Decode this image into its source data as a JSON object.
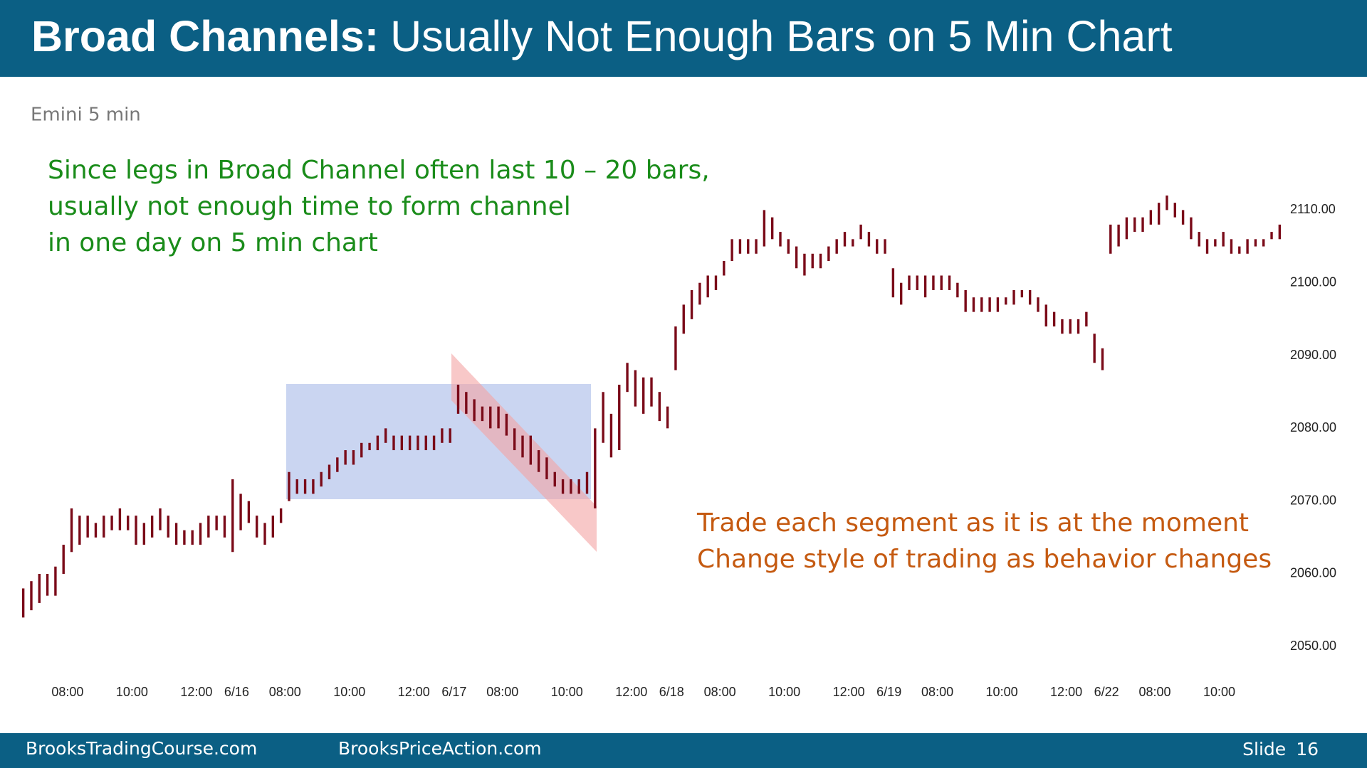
{
  "header": {
    "title_bold": "Broad Channels:",
    "title_rest": "Usually Not Enough Bars on 5 Min Chart"
  },
  "chart_data": {
    "type": "ohlc",
    "title": "Emini 5 min",
    "annotations": [
      "Since legs in Broad Channel often last 10 – 20 bars,",
      "usually not enough time to form channel",
      "in one day on 5 min chart",
      "Trade each segment as it is at the moment",
      "Change style of trading as behavior changes"
    ],
    "color": "#7a0a18",
    "xlim": [
      0,
      157
    ],
    "ylim": [
      2047,
      2116
    ],
    "yticks": [
      {
        "value": 2050,
        "label": "2050.00"
      },
      {
        "value": 2060,
        "label": "2060.00"
      },
      {
        "value": 2070,
        "label": "2070.00"
      },
      {
        "value": 2080,
        "label": "2080.00"
      },
      {
        "value": 2090,
        "label": "2090.00"
      },
      {
        "value": 2100,
        "label": "2100.00"
      },
      {
        "value": 2110,
        "label": "2110.00"
      }
    ],
    "xticks": [
      {
        "value": 6,
        "label": "08:00"
      },
      {
        "value": 14,
        "label": "10:00"
      },
      {
        "value": 22,
        "label": "12:00"
      },
      {
        "value": 27,
        "label": "6/16"
      },
      {
        "value": 33,
        "label": "08:00"
      },
      {
        "value": 41,
        "label": "10:00"
      },
      {
        "value": 49,
        "label": "12:00"
      },
      {
        "value": 54,
        "label": "6/17"
      },
      {
        "value": 60,
        "label": "08:00"
      },
      {
        "value": 68,
        "label": "10:00"
      },
      {
        "value": 76,
        "label": "12:00"
      },
      {
        "value": 81,
        "label": "6/18"
      },
      {
        "value": 87,
        "label": "08:00"
      },
      {
        "value": 95,
        "label": "10:00"
      },
      {
        "value": 103,
        "label": "12:00"
      },
      {
        "value": 108,
        "label": "6/19"
      },
      {
        "value": 114,
        "label": "08:00"
      },
      {
        "value": 122,
        "label": "10:00"
      },
      {
        "value": 130,
        "label": "12:00"
      },
      {
        "value": 135,
        "label": "6/22"
      },
      {
        "value": 141,
        "label": "08:00"
      },
      {
        "value": 149,
        "label": "10:00"
      }
    ],
    "high": [
      2058,
      2059,
      2060,
      2060,
      2061,
      2064,
      2069,
      2068,
      2068,
      2067,
      2068,
      2068,
      2069,
      2068,
      2068,
      2067,
      2068,
      2069,
      2068,
      2067,
      2066,
      2066,
      2067,
      2068,
      2068,
      2068,
      2073,
      2071,
      2070,
      2068,
      2067,
      2068,
      2069,
      2074,
      2073,
      2073,
      2073,
      2074,
      2075,
      2076,
      2077,
      2077,
      2078,
      2078,
      2079,
      2080,
      2079,
      2079,
      2079,
      2079,
      2079,
      2079,
      2080,
      2080,
      2086,
      2085,
      2084,
      2083,
      2083,
      2083,
      2082,
      2080,
      2079,
      2079,
      2077,
      2076,
      2074,
      2073,
      2073,
      2073,
      2074,
      2080,
      2085,
      2082,
      2086,
      2089,
      2088,
      2087,
      2087,
      2085,
      2083,
      2094,
      2097,
      2099,
      2100,
      2101,
      2101,
      2103,
      2106,
      2106,
      2106,
      2106,
      2110,
      2109,
      2107,
      2106,
      2105,
      2104,
      2104,
      2104,
      2105,
      2106,
      2107,
      2106,
      2108,
      2107,
      2106,
      2106,
      2102,
      2100,
      2101,
      2101,
      2101,
      2101,
      2101,
      2101,
      2100,
      2099,
      2098,
      2098,
      2098,
      2098,
      2098,
      2099,
      2099,
      2099,
      2098,
      2097,
      2096,
      2095,
      2095,
      2095,
      2096,
      2093,
      2091,
      2108,
      2108,
      2109,
      2109,
      2109,
      2110,
      2111,
      2112,
      2111,
      2110,
      2109,
      2107,
      2106,
      2106,
      2107,
      2106,
      2105,
      2106,
      2106,
      2106,
      2107,
      2108
    ],
    "low": [
      2054,
      2055,
      2056,
      2057,
      2057,
      2060,
      2063,
      2064,
      2065,
      2065,
      2065,
      2066,
      2066,
      2066,
      2064,
      2064,
      2065,
      2066,
      2065,
      2064,
      2064,
      2064,
      2064,
      2065,
      2066,
      2065,
      2063,
      2066,
      2067,
      2065,
      2064,
      2065,
      2067,
      2070,
      2071,
      2071,
      2071,
      2072,
      2073,
      2074,
      2075,
      2075,
      2076,
      2077,
      2077,
      2078,
      2077,
      2077,
      2077,
      2077,
      2077,
      2077,
      2078,
      2078,
      2082,
      2082,
      2081,
      2081,
      2080,
      2080,
      2079,
      2077,
      2076,
      2075,
      2074,
      2073,
      2072,
      2071,
      2071,
      2071,
      2071,
      2069,
      2078,
      2076,
      2077,
      2085,
      2083,
      2082,
      2083,
      2081,
      2080,
      2088,
      2093,
      2095,
      2097,
      2098,
      2099,
      2101,
      2103,
      2104,
      2104,
      2104,
      2105,
      2106,
      2105,
      2104,
      2102,
      2101,
      2102,
      2102,
      2103,
      2104,
      2105,
      2105,
      2106,
      2105,
      2104,
      2104,
      2098,
      2097,
      2099,
      2099,
      2098,
      2099,
      2099,
      2099,
      2098,
      2096,
      2096,
      2096,
      2096,
      2096,
      2097,
      2097,
      2098,
      2097,
      2096,
      2094,
      2094,
      2093,
      2093,
      2093,
      2094,
      2089,
      2088,
      2104,
      2105,
      2106,
      2107,
      2107,
      2108,
      2108,
      2110,
      2109,
      2108,
      2106,
      2105,
      2104,
      2105,
      2105,
      2104,
      2104,
      2104,
      2105,
      2105,
      2106,
      2106
    ]
  },
  "footer": {
    "left": "BrooksTradingCourse.com",
    "center": "BrooksPriceAction.com",
    "slide_label": "Slide",
    "slide_number": "16"
  }
}
